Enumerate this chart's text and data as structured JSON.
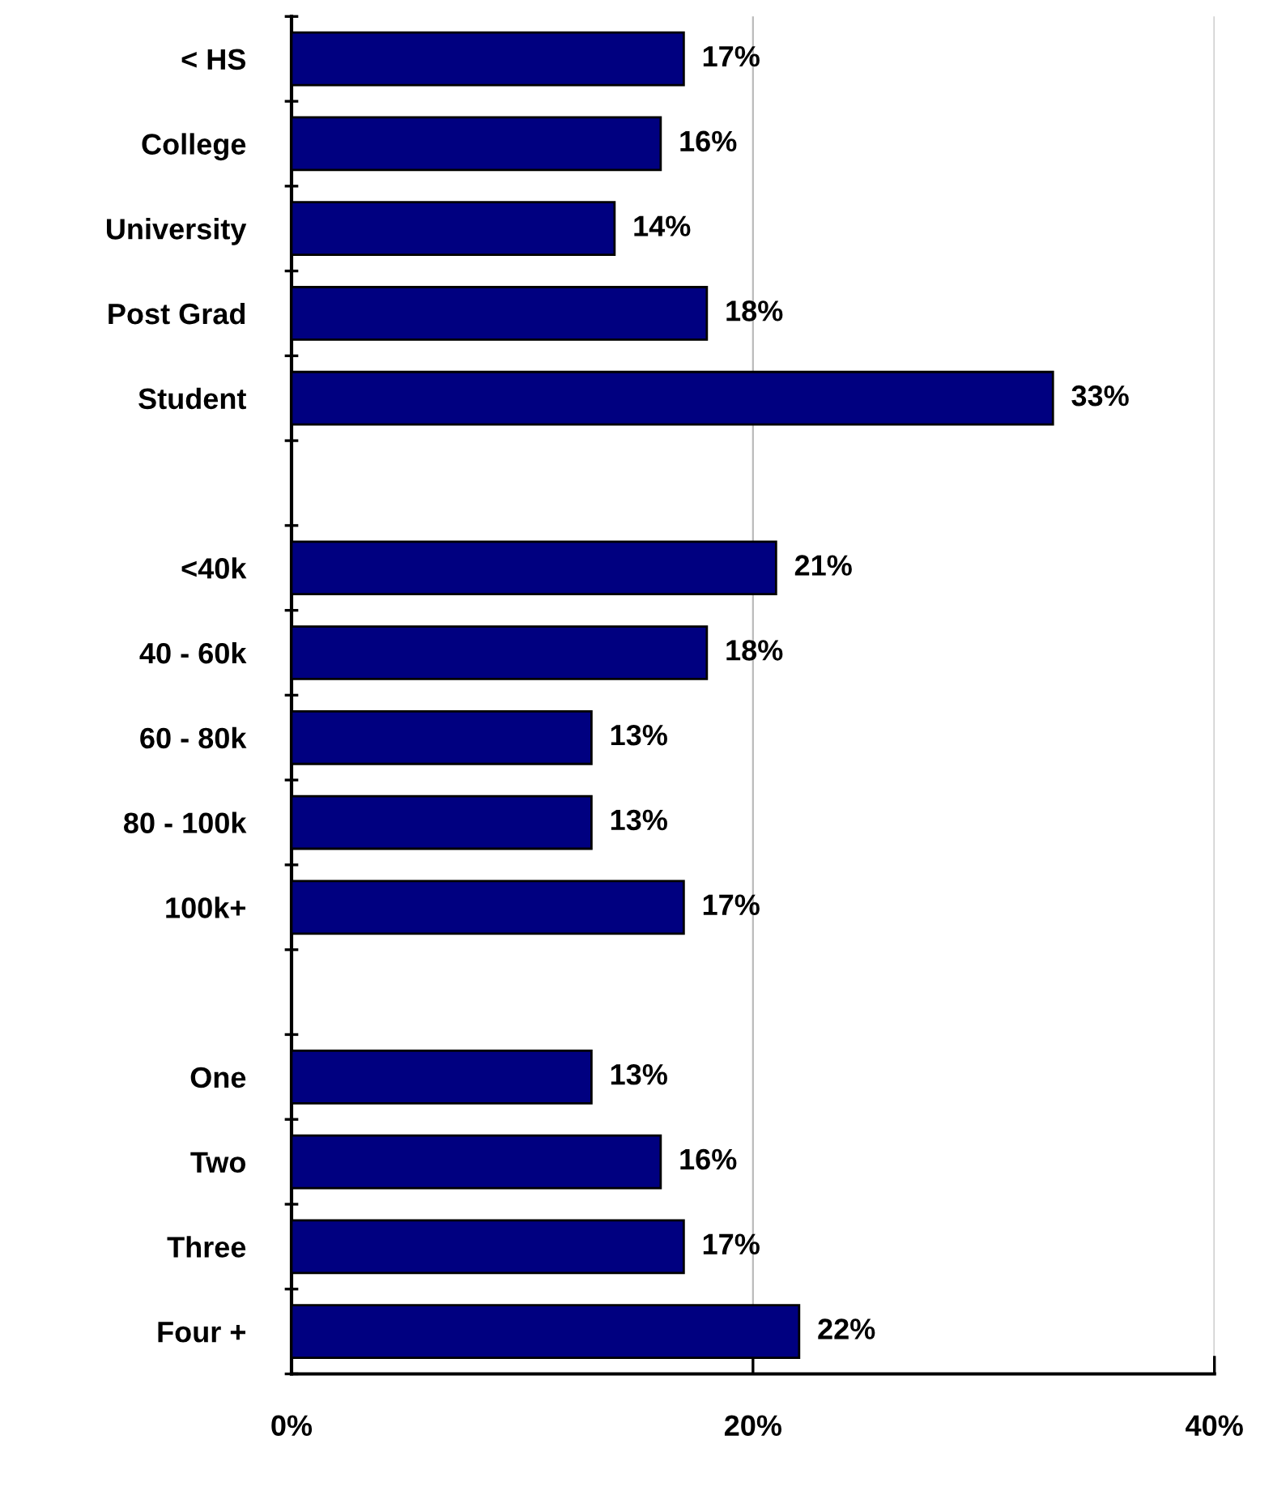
{
  "chart_data": {
    "type": "bar",
    "orientation": "horizontal",
    "categories": [
      "< HS",
      "College",
      "University",
      "Post Grad",
      "Student",
      null,
      "<40k",
      "40 - 60k",
      "60 - 80k",
      "80 - 100k",
      "100k+",
      null,
      "One",
      "Two",
      "Three",
      "Four +"
    ],
    "values": [
      17,
      16,
      14,
      18,
      33,
      null,
      21,
      18,
      13,
      13,
      17,
      null,
      13,
      16,
      17,
      22
    ],
    "value_labels": [
      "17%",
      "16%",
      "14%",
      "18%",
      "33%",
      null,
      "21%",
      "18%",
      "13%",
      "13%",
      "17%",
      null,
      "13%",
      "16%",
      "17%",
      "22%"
    ],
    "color": "#000080",
    "xlim": [
      0,
      40
    ],
    "xticks": [
      {
        "value": 0,
        "label": "0%"
      },
      {
        "value": 20,
        "label": "20%"
      },
      {
        "value": 40,
        "label": "40%"
      }
    ],
    "grid": "x"
  }
}
